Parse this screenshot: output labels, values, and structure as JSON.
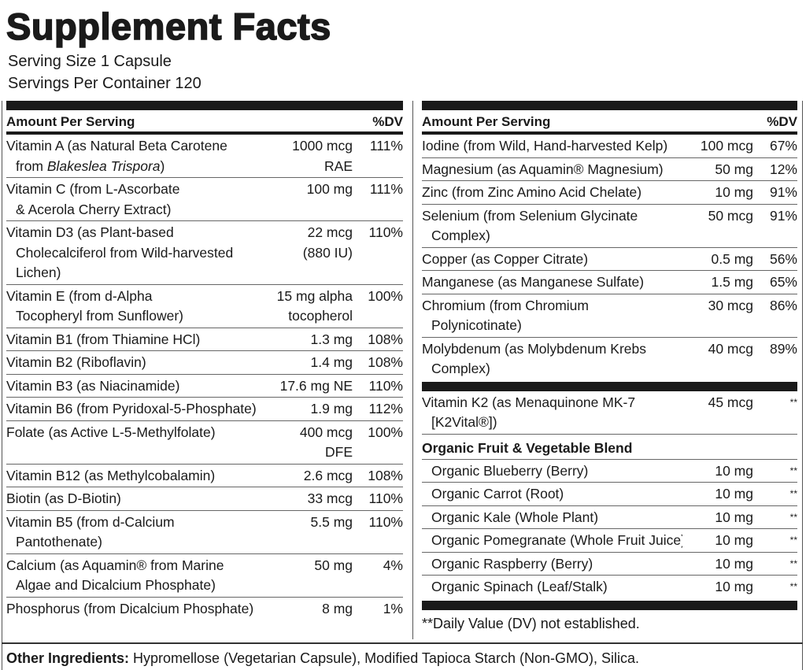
{
  "title": "Supplement Facts",
  "serving_size": "Serving Size 1 Capsule",
  "servings_per_container": "Servings Per Container 120",
  "left": {
    "header": {
      "name": "Amount Per Serving",
      "dv": "%DV"
    },
    "rows": [
      {
        "name": [
          "Vitamin A (as Natural Beta Carotene",
          [
            {
              "text": "from "
            },
            {
              "text": "Blakeslea Trispora",
              "style": "italic"
            },
            {
              "text": ")"
            }
          ]
        ],
        "amount": [
          "1000 mcg",
          "RAE"
        ],
        "dv": "111%"
      },
      {
        "name": [
          "Vitamin C (from L-Ascorbate",
          "& Acerola Cherry Extract)"
        ],
        "amount": [
          "100 mg"
        ],
        "dv": "111%"
      },
      {
        "name": [
          "Vitamin D3 (as Plant-based",
          "Cholecalciferol from Wild-harvested",
          "Lichen)"
        ],
        "amount": [
          "22 mcg",
          "(880 IU)"
        ],
        "dv": "110%"
      },
      {
        "name": [
          "Vitamin E (from d-Alpha",
          "Tocopheryl from Sunflower)"
        ],
        "amount": [
          "15 mg alpha",
          "tocopherol"
        ],
        "dv": "100%"
      },
      {
        "name": [
          "Vitamin B1 (from Thiamine HCl)"
        ],
        "amount": [
          "1.3 mg"
        ],
        "dv": "108%"
      },
      {
        "name": [
          "Vitamin B2 (Riboflavin)"
        ],
        "amount": [
          "1.4 mg"
        ],
        "dv": "108%"
      },
      {
        "name": [
          "Vitamin B3 (as Niacinamide)"
        ],
        "amount": [
          "17.6 mg NE"
        ],
        "dv": "110%"
      },
      {
        "name": [
          "Vitamin B6 (from Pyridoxal-5-Phosphate)"
        ],
        "amount": [
          "1.9 mg"
        ],
        "dv": "112%"
      },
      {
        "name": [
          "Folate (as Active L-5-Methylfolate)"
        ],
        "amount": [
          "400 mcg",
          "DFE"
        ],
        "dv": "100%"
      },
      {
        "name": [
          "Vitamin B12 (as Methylcobalamin)"
        ],
        "amount": [
          "2.6 mcg"
        ],
        "dv": "108%"
      },
      {
        "name": [
          "Biotin (as D-Biotin)"
        ],
        "amount": [
          "33 mcg"
        ],
        "dv": "110%"
      },
      {
        "name": [
          "Vitamin B5 (from d-Calcium",
          "Pantothenate)"
        ],
        "amount": [
          "5.5 mg"
        ],
        "dv": "110%"
      },
      {
        "name": [
          "Calcium (as Aquamin® from Marine",
          "Algae and Dicalcium Phosphate)"
        ],
        "amount": [
          "50 mg"
        ],
        "dv": "4%"
      },
      {
        "name": [
          "Phosphorus (from Dicalcium Phosphate)"
        ],
        "amount": [
          "8 mg"
        ],
        "dv": "1%"
      }
    ]
  },
  "right": {
    "header": {
      "name": "Amount Per Serving",
      "dv": "%DV"
    },
    "rows": [
      {
        "name": [
          "Iodine (from Wild, Hand-harvested Kelp)"
        ],
        "amount": [
          "100 mcg"
        ],
        "dv": "67%"
      },
      {
        "name": [
          "Magnesium (as Aquamin® Magnesium)"
        ],
        "amount": [
          "50 mg"
        ],
        "dv": "12%"
      },
      {
        "name": [
          "Zinc (from Zinc Amino Acid Chelate)"
        ],
        "amount": [
          "10 mg"
        ],
        "dv": "91%"
      },
      {
        "name": [
          "Selenium (from Selenium Glycinate",
          "Complex)"
        ],
        "amount": [
          "50 mcg"
        ],
        "dv": "91%"
      },
      {
        "name": [
          "Copper (as Copper Citrate)"
        ],
        "amount": [
          "0.5 mg"
        ],
        "dv": "56%"
      },
      {
        "name": [
          "Manganese (as Manganese Sulfate)"
        ],
        "amount": [
          "1.5 mg"
        ],
        "dv": "65%"
      },
      {
        "name": [
          "Chromium (from Chromium",
          "Polynicotinate)"
        ],
        "amount": [
          "30 mcg"
        ],
        "dv": "86%"
      },
      {
        "name": [
          "Molybdenum (as Molybdenum Krebs",
          "Complex)"
        ],
        "amount": [
          "40 mcg"
        ],
        "dv": "89%"
      }
    ],
    "other_rows": [
      {
        "name": [
          "Vitamin K2 (as Menaquinone MK-7",
          "[K2Vital®])"
        ],
        "amount": [
          "45 mcg"
        ],
        "dv": "**"
      }
    ],
    "blend": {
      "title": "Organic Fruit & Vegetable Blend",
      "items": [
        {
          "name": [
            "Organic Blueberry (Berry)"
          ],
          "amount": [
            "10 mg"
          ],
          "dv": "**"
        },
        {
          "name": [
            "Organic Carrot (Root)"
          ],
          "amount": [
            "10 mg"
          ],
          "dv": "**"
        },
        {
          "name": [
            "Organic Kale (Whole Plant)"
          ],
          "amount": [
            "10 mg"
          ],
          "dv": "**"
        },
        {
          "name": [
            "Organic Pomegranate (Whole Fruit Juice)"
          ],
          "amount": [
            "10 mg"
          ],
          "dv": "**"
        },
        {
          "name": [
            "Organic Raspberry (Berry)"
          ],
          "amount": [
            "10 mg"
          ],
          "dv": "**"
        },
        {
          "name": [
            "Organic  Spinach (Leaf/Stalk)"
          ],
          "amount": [
            "10 mg"
          ],
          "dv": "**"
        }
      ]
    },
    "footnote": "**Daily Value (DV) not established."
  },
  "other_ingredients": {
    "label": "Other Ingredients:",
    "text": "Hypromellose (Vegetarian Capsule), Modified Tapioca Starch (Non-GMO), Silica."
  }
}
